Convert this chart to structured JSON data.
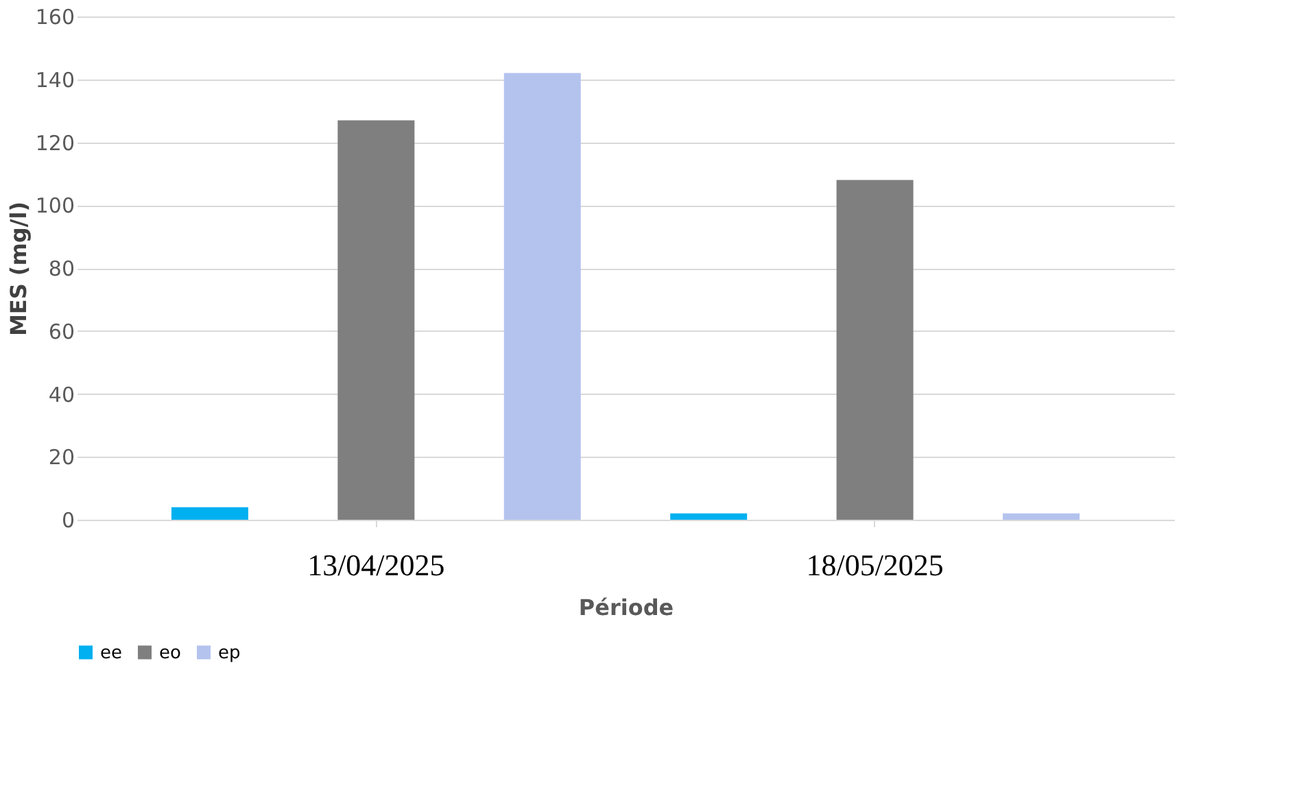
{
  "chart_data": {
    "type": "bar",
    "categories": [
      "13/04/2025",
      "18/05/2025"
    ],
    "series": [
      {
        "name": "ee",
        "color": "#00b0f0",
        "values": [
          4,
          2
        ]
      },
      {
        "name": "eo",
        "color": "#7f7f7f",
        "values": [
          127,
          108
        ]
      },
      {
        "name": "ep",
        "color": "#b4c3ee",
        "values": [
          142,
          2
        ]
      }
    ],
    "xlabel": "Période",
    "ylabel": "MES (mg/l)",
    "ylim": [
      0,
      160
    ],
    "yticks": [
      0,
      20,
      40,
      60,
      80,
      100,
      120,
      140,
      160
    ],
    "grid": "y",
    "legend": "bottom"
  }
}
